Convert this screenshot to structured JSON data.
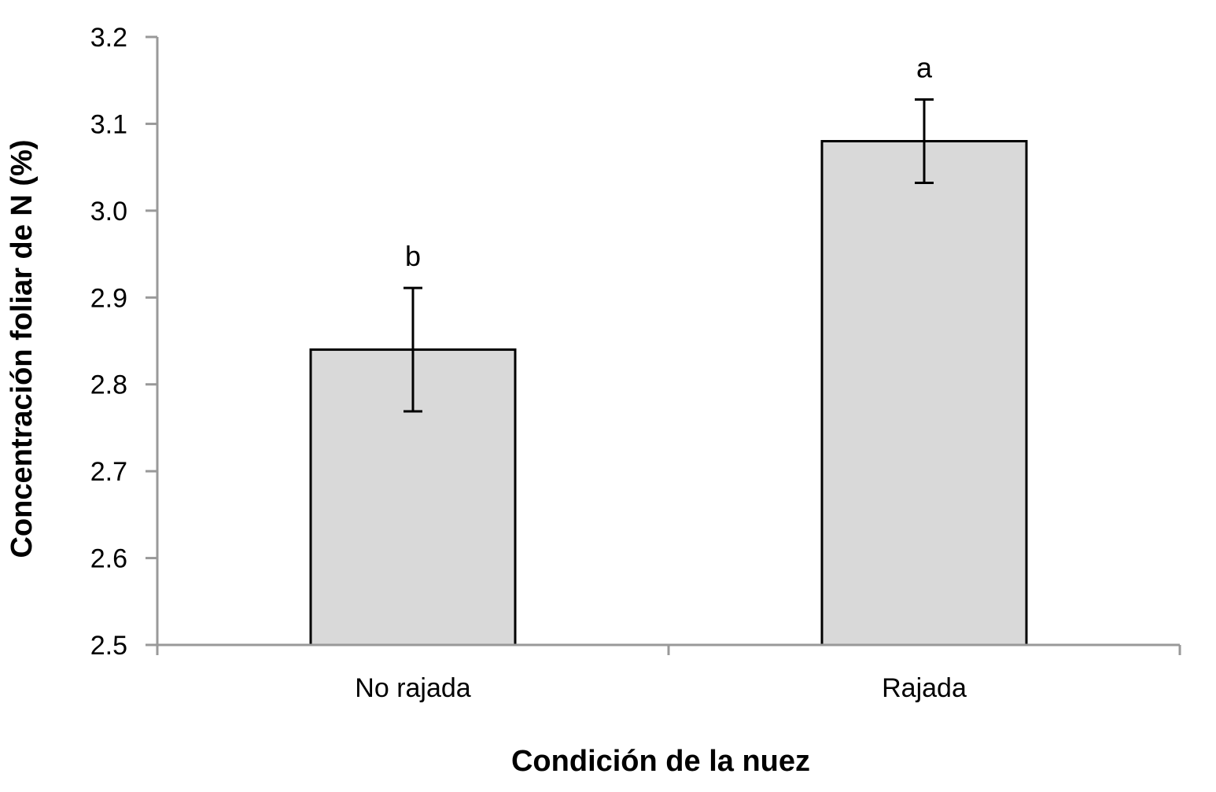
{
  "chart_data": {
    "type": "bar",
    "title": "",
    "xlabel": "Condición de la nuez",
    "ylabel": "Concentración foliar de N (%)",
    "ylim": [
      2.5,
      3.2
    ],
    "yticks": [
      "2.5",
      "2.6",
      "2.7",
      "2.8",
      "2.9",
      "3.0",
      "3.1",
      "3.2"
    ],
    "ytick_values": [
      2.5,
      2.6,
      2.7,
      2.8,
      2.9,
      3.0,
      3.1,
      3.2
    ],
    "categories": [
      "No rajada",
      "Rajada"
    ],
    "values": [
      2.84,
      3.08
    ],
    "error": [
      0.071,
      0.048
    ],
    "significance_letters": [
      "b",
      "a"
    ],
    "grid": false,
    "legend": "none",
    "bar_color": "#d9d9d9",
    "bar_edge_color": "#000000",
    "axis_color": "#999999"
  }
}
